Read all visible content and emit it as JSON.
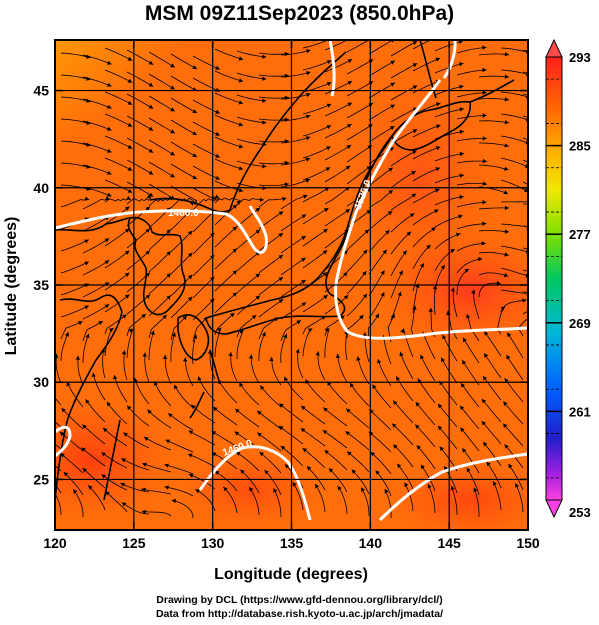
{
  "title": "MSM 09Z11Sep2023 (850.0hPa)",
  "chart_data": {
    "type": "heatmap",
    "title": "MSM 09Z11Sep2023 (850.0hPa)",
    "xlabel": "Longitude (degrees)",
    "ylabel": "Latitude  (degrees)",
    "xlim": [
      120,
      150
    ],
    "ylim": [
      22.4,
      47.6
    ],
    "x_ticks": [
      120,
      125,
      130,
      135,
      140,
      145,
      150
    ],
    "y_ticks": [
      25,
      30,
      35,
      40,
      45
    ],
    "grid_lon": [
      125,
      130,
      135,
      140,
      145
    ],
    "grid_lat": [
      25,
      30,
      35,
      40,
      45
    ],
    "colorbar": {
      "min": 253,
      "max": 293,
      "tick_labels": [
        293,
        285,
        277,
        269,
        261,
        253
      ]
    },
    "contours": [
      {
        "label": "1520.0"
      },
      {
        "label": "1460.0"
      },
      {
        "label": "1460.0"
      }
    ]
  },
  "credits": {
    "line1": "Drawing by DCL (https://www.gfd-dennou.org/library/dcl/)",
    "line2": "Data from http://database.rish.kyoto-u.ac.jp/arch/jmadata/"
  },
  "colors": {
    "warm": "#ff3a10",
    "mid": "#ff8c00",
    "cool": "#d8e800",
    "cold": "#60c800",
    "contour": "#ffffff",
    "coast": "#000000"
  }
}
